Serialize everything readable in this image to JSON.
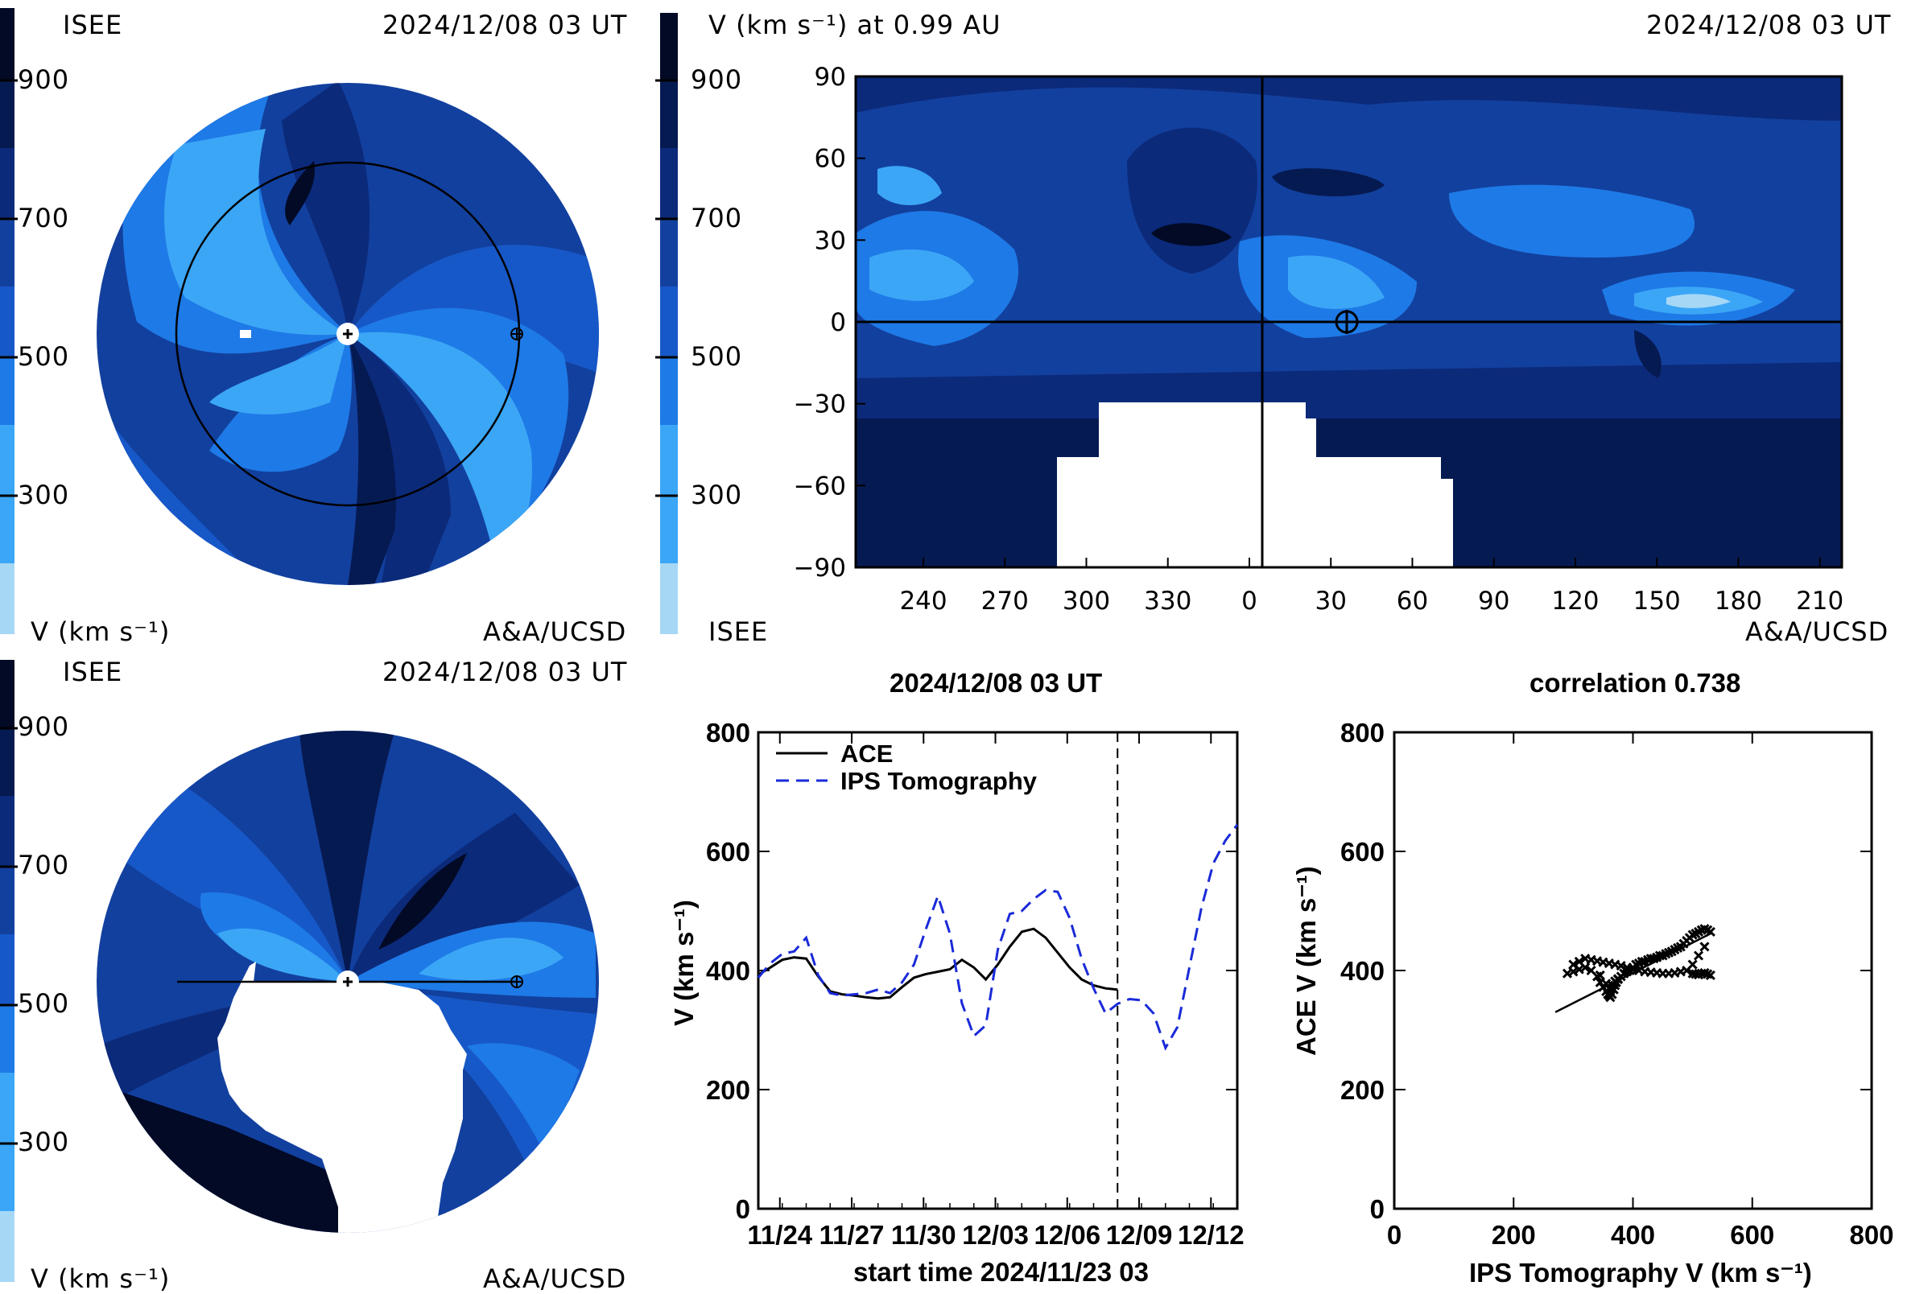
{
  "colors": {
    "bands": [
      "#a6d8f6",
      "#3ba6f6",
      "#1e7ae6",
      "#1758c8",
      "#12409e",
      "#0c2a7a",
      "#061a52",
      "#020a26"
    ],
    "ace": "#000000",
    "ips": "#1a2ad8"
  },
  "colorbar": {
    "ticks": [
      900,
      700,
      500,
      300
    ],
    "unit_label": "V (km s⁻¹)"
  },
  "panel_top_left": {
    "left_label": "ISEE",
    "date": "2024/12/08 03 UT",
    "bottom_left": "V (km s⁻¹)",
    "bottom_right": "A&A/UCSD",
    "symbols": [
      "sun-icon",
      "earth-icon"
    ]
  },
  "panel_top_right": {
    "title": "V (km s⁻¹) at 0.99 AU",
    "date": "2024/12/08 03 UT",
    "bottom_left": "ISEE",
    "bottom_right": "A&A/UCSD",
    "xticks": [
      "240",
      "270",
      "300",
      "330",
      "0",
      "30",
      "60",
      "90",
      "120",
      "150",
      "180",
      "210"
    ],
    "yticks": [
      "90",
      "60",
      "30",
      "0",
      "−30",
      "−60",
      "−90"
    ]
  },
  "panel_bottom_left": {
    "left_label": "ISEE",
    "date": "2024/12/08 03 UT",
    "bottom_left": "V (km s⁻¹)",
    "bottom_right": "A&A/UCSD"
  },
  "chart_data": [
    {
      "type": "line",
      "title": "2024/12/08 03 UT",
      "xlabel": "start time 2024/11/23 03",
      "ylabel": "V (km s⁻¹)",
      "ylim": [
        0,
        800
      ],
      "xlim": [
        0.0,
        20.0
      ],
      "x_unit": "days since 2024/11/23 03",
      "xtick_labels": [
        "11/24",
        "11/27",
        "11/30",
        "12/03",
        "12/06",
        "12/09",
        "12/12"
      ],
      "xtick_values": [
        0.9,
        3.9,
        6.9,
        9.9,
        12.9,
        15.9,
        18.9
      ],
      "yticks": [
        0,
        200,
        400,
        600,
        800
      ],
      "current_time_marker": 15.0,
      "legend_position": "top-left",
      "series": [
        {
          "name": "ACE",
          "style": "solid",
          "x": [
            0.0,
            0.5,
            1.0,
            1.5,
            2.0,
            2.5,
            3.0,
            3.5,
            4.0,
            4.5,
            5.0,
            5.5,
            6.0,
            6.5,
            7.0,
            7.5,
            8.0,
            8.5,
            9.0,
            9.5,
            10.0,
            10.5,
            11.0,
            11.5,
            12.0,
            12.5,
            13.0,
            13.5,
            14.0,
            14.5,
            15.0
          ],
          "y": [
            393,
            405,
            418,
            422,
            420,
            390,
            365,
            360,
            358,
            355,
            353,
            355,
            372,
            388,
            394,
            398,
            402,
            418,
            405,
            385,
            410,
            440,
            465,
            470,
            455,
            430,
            405,
            385,
            375,
            370,
            368
          ]
        },
        {
          "name": "IPS Tomography",
          "style": "dashed",
          "x": [
            0.0,
            0.5,
            1.0,
            1.5,
            2.0,
            2.5,
            3.0,
            3.5,
            4.0,
            4.5,
            5.0,
            5.5,
            6.0,
            6.5,
            7.0,
            7.5,
            8.0,
            8.5,
            9.0,
            9.5,
            10.0,
            10.5,
            11.0,
            11.5,
            12.0,
            12.5,
            13.0,
            13.5,
            14.0,
            14.5,
            15.0,
            15.5,
            16.0,
            16.5,
            17.0,
            17.5,
            18.0,
            18.5,
            19.0,
            19.5,
            20.0
          ],
          "y": [
            388,
            412,
            428,
            432,
            455,
            392,
            362,
            358,
            360,
            362,
            368,
            362,
            380,
            410,
            470,
            525,
            462,
            345,
            290,
            308,
            435,
            495,
            500,
            520,
            535,
            532,
            488,
            420,
            370,
            328,
            344,
            352,
            350,
            328,
            270,
            305,
            405,
            505,
            580,
            618,
            645
          ]
        }
      ]
    },
    {
      "type": "scatter",
      "title": "correlation 0.738",
      "xlabel": "IPS Tomography V (km s⁻¹)",
      "ylabel": "ACE V (km s⁻¹)",
      "xlim": [
        0,
        800
      ],
      "ylim": [
        0,
        800
      ],
      "xticks": [
        0,
        200,
        400,
        600,
        800
      ],
      "yticks": [
        0,
        200,
        400,
        600,
        800
      ],
      "x": [
        290,
        300,
        310,
        320,
        330,
        340,
        345,
        350,
        355,
        358,
        360,
        362,
        365,
        368,
        370,
        372,
        375,
        380,
        385,
        390,
        395,
        400,
        405,
        410,
        415,
        420,
        425,
        430,
        435,
        440,
        445,
        450,
        455,
        460,
        465,
        470,
        475,
        480,
        485,
        490,
        495,
        500,
        505,
        510,
        515,
        520,
        525,
        530,
        520,
        510,
        500,
        490,
        480,
        470,
        460,
        450,
        440,
        430,
        420,
        410,
        400,
        390,
        380,
        370,
        360,
        350,
        340,
        330,
        320,
        310,
        300,
        360,
        365,
        355,
        370,
        375,
        345,
        385,
        390,
        500,
        505,
        510,
        515,
        520,
        525,
        530
      ],
      "y": [
        395,
        398,
        402,
        405,
        400,
        390,
        380,
        372,
        365,
        360,
        358,
        355,
        360,
        368,
        375,
        380,
        385,
        390,
        395,
        398,
        400,
        405,
        410,
        412,
        415,
        415,
        418,
        420,
        420,
        422,
        425,
        425,
        428,
        430,
        432,
        435,
        438,
        440,
        445,
        450,
        455,
        460,
        462,
        465,
        468,
        470,
        468,
        465,
        440,
        425,
        410,
        400,
        398,
        396,
        395,
        395,
        396,
        397,
        398,
        400,
        402,
        405,
        408,
        410,
        412,
        414,
        416,
        418,
        420,
        415,
        410,
        370,
        375,
        378,
        382,
        386,
        392,
        395,
        400,
        395,
        394,
        393,
        395,
        396,
        394,
        392
      ],
      "fit_line": [
        [
          270,
          330
        ],
        [
          530,
          462
        ]
      ]
    }
  ]
}
